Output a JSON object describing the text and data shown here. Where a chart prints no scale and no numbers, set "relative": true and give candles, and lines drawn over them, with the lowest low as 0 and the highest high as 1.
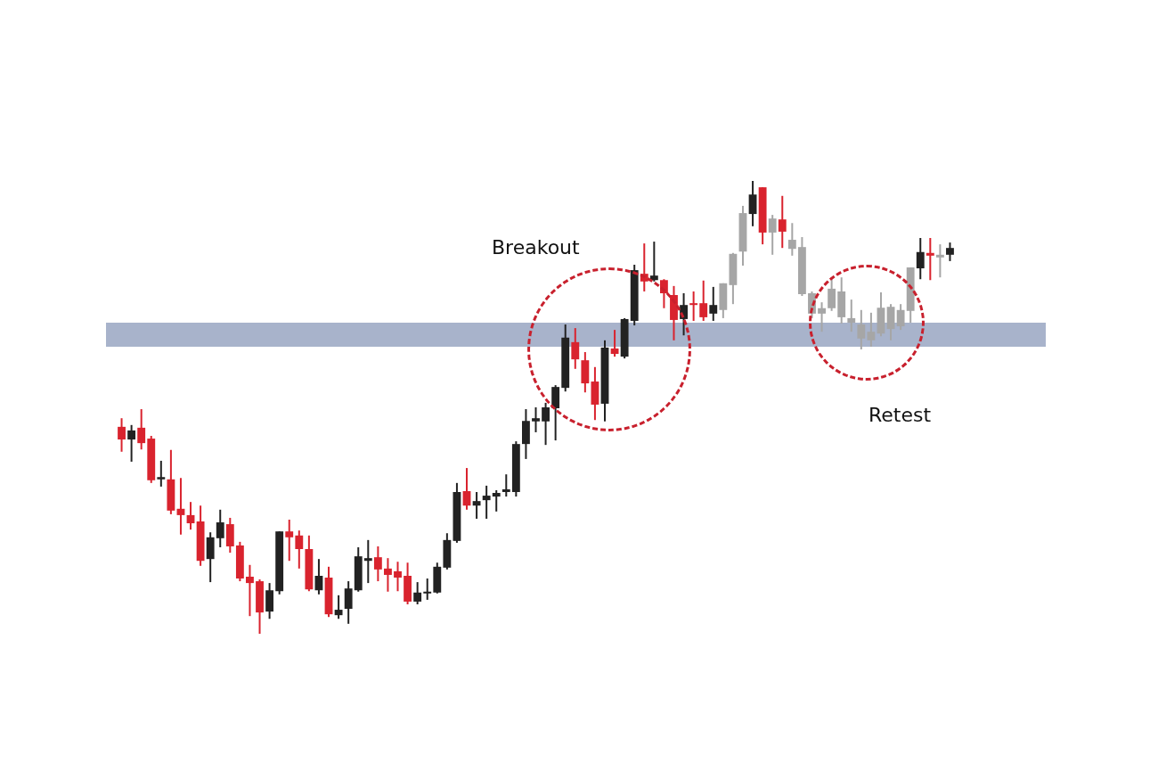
{
  "chart_data": {
    "type": "candlestick",
    "relative": true,
    "categories": [
      null,
      null,
      null,
      null,
      null,
      null,
      null,
      null,
      null,
      null,
      null,
      null,
      null,
      null,
      null,
      null,
      null,
      null,
      null,
      null,
      null,
      null,
      null,
      null,
      null,
      null,
      null,
      null,
      null,
      null,
      null,
      null,
      null,
      null,
      null,
      null,
      null,
      null,
      null,
      null,
      null,
      null,
      null,
      null,
      null,
      null,
      null,
      null,
      null,
      null,
      null,
      null,
      null,
      null,
      null,
      null,
      null,
      null,
      null,
      null,
      null,
      null,
      null,
      null,
      null,
      null,
      null,
      null,
      null,
      null,
      null,
      null,
      null,
      null,
      null,
      null,
      null,
      null,
      null,
      null,
      null,
      null,
      null,
      null,
      null
    ],
    "ohlc": [
      [
        0.457,
        0.476,
        0.402,
        0.429
      ],
      [
        0.429,
        0.461,
        0.38,
        0.449
      ],
      [
        0.455,
        0.496,
        0.407,
        0.421
      ],
      [
        0.431,
        0.437,
        0.333,
        0.339
      ],
      [
        0.341,
        0.382,
        0.325,
        0.346
      ],
      [
        0.341,
        0.406,
        0.264,
        0.272
      ],
      [
        0.276,
        0.344,
        0.219,
        0.262
      ],
      [
        0.262,
        0.291,
        0.23,
        0.244
      ],
      [
        0.248,
        0.283,
        0.15,
        0.161
      ],
      [
        0.165,
        0.224,
        0.114,
        0.213
      ],
      [
        0.211,
        0.274,
        0.191,
        0.246
      ],
      [
        0.242,
        0.256,
        0.179,
        0.193
      ],
      [
        0.195,
        0.203,
        0.116,
        0.122
      ],
      [
        0.126,
        0.152,
        0.039,
        0.112
      ],
      [
        0.116,
        0.12,
        0.0,
        0.047
      ],
      [
        0.049,
        0.112,
        0.033,
        0.096
      ],
      [
        0.094,
        0.226,
        0.087,
        0.226
      ],
      [
        0.226,
        0.252,
        0.161,
        0.213
      ],
      [
        0.217,
        0.228,
        0.144,
        0.187
      ],
      [
        0.187,
        0.217,
        0.094,
        0.098
      ],
      [
        0.096,
        0.165,
        0.087,
        0.128
      ],
      [
        0.124,
        0.148,
        0.037,
        0.043
      ],
      [
        0.041,
        0.085,
        0.033,
        0.053
      ],
      [
        0.055,
        0.116,
        0.022,
        0.1
      ],
      [
        0.096,
        0.191,
        0.093,
        0.171
      ],
      [
        0.161,
        0.207,
        0.112,
        0.167
      ],
      [
        0.169,
        0.193,
        0.116,
        0.142
      ],
      [
        0.144,
        0.167,
        0.093,
        0.13
      ],
      [
        0.138,
        0.159,
        0.094,
        0.124
      ],
      [
        0.128,
        0.157,
        0.065,
        0.071
      ],
      [
        0.071,
        0.114,
        0.065,
        0.091
      ],
      [
        0.089,
        0.122,
        0.075,
        0.093
      ],
      [
        0.091,
        0.157,
        0.089,
        0.148
      ],
      [
        0.146,
        0.222,
        0.142,
        0.207
      ],
      [
        0.205,
        0.333,
        0.201,
        0.313
      ],
      [
        0.315,
        0.366,
        0.274,
        0.283
      ],
      [
        0.283,
        0.313,
        0.254,
        0.293
      ],
      [
        0.295,
        0.327,
        0.254,
        0.305
      ],
      [
        0.303,
        0.317,
        0.27,
        0.311
      ],
      [
        0.313,
        0.352,
        0.303,
        0.319
      ],
      [
        0.313,
        0.425,
        0.303,
        0.419
      ],
      [
        0.419,
        0.496,
        0.386,
        0.47
      ],
      [
        0.469,
        0.5,
        0.445,
        0.476
      ],
      [
        0.469,
        0.51,
        0.417,
        0.5
      ],
      [
        0.498,
        0.549,
        0.427,
        0.545
      ],
      [
        0.543,
        0.683,
        0.535,
        0.654
      ],
      [
        0.644,
        0.675,
        0.585,
        0.606
      ],
      [
        0.604,
        0.622,
        0.533,
        0.553
      ],
      [
        0.557,
        0.589,
        0.472,
        0.506
      ],
      [
        0.508,
        0.648,
        0.469,
        0.632
      ],
      [
        0.63,
        0.671,
        0.612,
        0.618
      ],
      [
        0.612,
        0.697,
        0.608,
        0.695
      ],
      [
        0.691,
        0.815,
        0.681,
        0.803
      ],
      [
        0.795,
        0.862,
        0.756,
        0.778
      ],
      [
        0.781,
        0.866,
        0.778,
        0.791
      ],
      [
        0.781,
        0.783,
        0.719,
        0.752
      ],
      [
        0.748,
        0.768,
        0.648,
        0.693
      ],
      [
        0.695,
        0.752,
        0.659,
        0.726
      ],
      [
        0.73,
        0.756,
        0.691,
        0.726
      ],
      [
        0.73,
        0.78,
        0.691,
        0.699
      ],
      [
        0.707,
        0.766,
        0.691,
        0.726
      ],
      [
        0.715,
        0.774,
        0.697,
        0.774
      ],
      [
        0.77,
        0.841,
        0.728,
        0.839
      ],
      [
        0.844,
        0.945,
        0.813,
        0.929
      ],
      [
        0.927,
        1.0,
        0.9,
        0.97
      ],
      [
        0.986,
        0.986,
        0.86,
        0.886
      ],
      [
        0.917,
        0.925,
        0.837,
        0.886
      ],
      [
        0.915,
        0.967,
        0.852,
        0.888
      ],
      [
        0.87,
        0.907,
        0.835,
        0.85
      ],
      [
        0.854,
        0.876,
        0.746,
        0.75
      ],
      [
        0.752,
        0.756,
        0.697,
        0.707
      ],
      [
        0.719,
        0.732,
        0.667,
        0.707
      ],
      [
        0.719,
        0.787,
        0.713,
        0.762
      ],
      [
        0.756,
        0.787,
        0.685,
        0.699
      ],
      [
        0.697,
        0.738,
        0.667,
        0.687
      ],
      [
        0.683,
        0.715,
        0.628,
        0.652
      ],
      [
        0.667,
        0.709,
        0.634,
        0.648
      ],
      [
        0.663,
        0.754,
        0.657,
        0.72
      ],
      [
        0.673,
        0.728,
        0.648,
        0.722
      ],
      [
        0.679,
        0.728,
        0.671,
        0.715
      ],
      [
        0.713,
        0.809,
        0.687,
        0.809
      ],
      [
        0.807,
        0.874,
        0.783,
        0.843
      ],
      [
        0.841,
        0.874,
        0.781,
        0.835
      ],
      [
        0.831,
        0.86,
        0.787,
        0.837
      ],
      [
        0.837,
        0.864,
        0.823,
        0.852
      ]
    ],
    "colors": [
      "#d9232e",
      "#222222",
      "#d9232e",
      "#d9232e",
      "#222222",
      "#d9232e",
      "#d9232e",
      "#d9232e",
      "#d9232e",
      "#222222",
      "#222222",
      "#d9232e",
      "#d9232e",
      "#d9232e",
      "#d9232e",
      "#222222",
      "#222222",
      "#d9232e",
      "#d9232e",
      "#d9232e",
      "#222222",
      "#d9232e",
      "#222222",
      "#222222",
      "#222222",
      "#222222",
      "#d9232e",
      "#d9232e",
      "#d9232e",
      "#d9232e",
      "#222222",
      "#222222",
      "#222222",
      "#222222",
      "#222222",
      "#d9232e",
      "#222222",
      "#222222",
      "#222222",
      "#222222",
      "#222222",
      "#222222",
      "#222222",
      "#222222",
      "#222222",
      "#222222",
      "#d9232e",
      "#d9232e",
      "#d9232e",
      "#222222",
      "#d9232e",
      "#222222",
      "#222222",
      "#d9232e",
      "#222222",
      "#d9232e",
      "#d9232e",
      "#222222",
      "#d9232e",
      "#d9232e",
      "#222222",
      "#a6a6a6",
      "#a6a6a6",
      "#a6a6a6",
      "#222222",
      "#d9232e",
      "#a6a6a6",
      "#d9232e",
      "#a6a6a6",
      "#a6a6a6",
      "#a6a6a6",
      "#a6a6a6",
      "#a6a6a6",
      "#a6a6a6",
      "#a6a6a6",
      "#a6a6a6",
      "#a6a6a6",
      "#a6a6a6",
      "#a6a6a6",
      "#a6a6a6",
      "#a6a6a6",
      "#222222",
      "#d9232e",
      "#a6a6a6",
      "#222222"
    ],
    "bands": [
      {
        "axis": "y",
        "from": 0.634,
        "to": 0.687,
        "color": "#a8b3cb"
      }
    ],
    "annotations": [
      "Breakout",
      "Retest"
    ]
  }
}
